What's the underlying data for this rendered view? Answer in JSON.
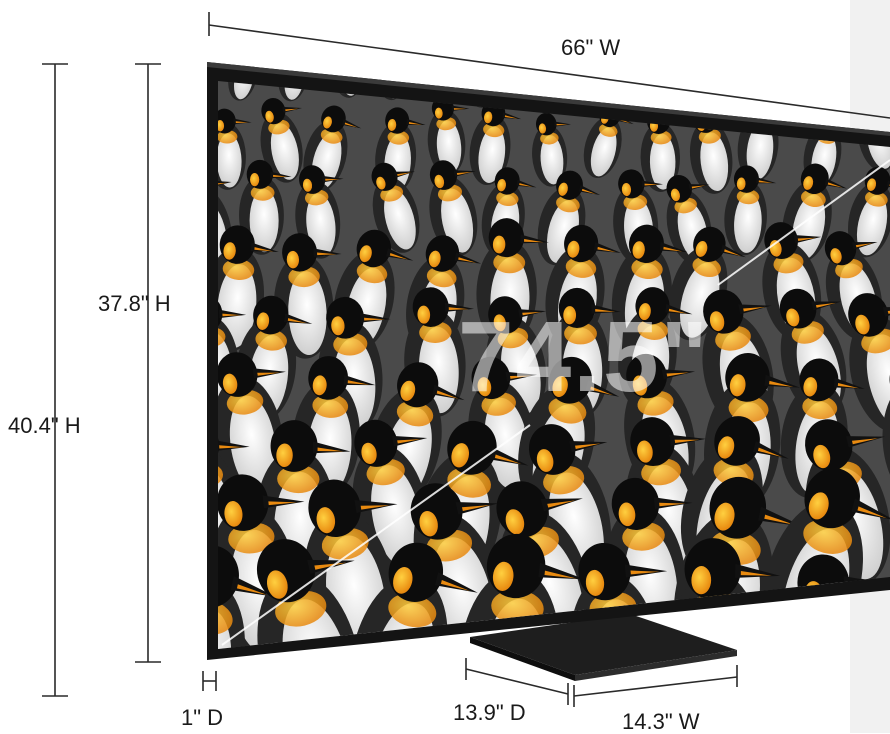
{
  "dimensions": {
    "width_label": "66\" W",
    "screen_height_label": "37.8\" H",
    "total_height_label": "40.4\" H",
    "panel_depth_label": "1\" D",
    "stand_depth_label": "13.9\" D",
    "stand_width_label": "14.3\" W",
    "diagonal_label": "74.5\""
  },
  "colors": {
    "background": "#ffffff",
    "dimension_line": "#2a2a2a",
    "tv_frame": "#141414",
    "penguin_orange": "#f0a020"
  }
}
